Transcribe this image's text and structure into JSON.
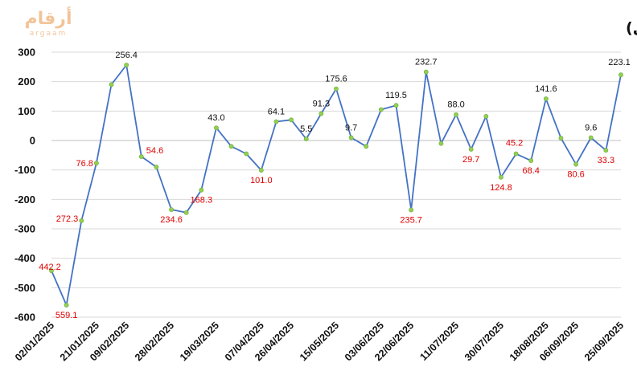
{
  "header": {
    "title": "صافي استثمارات الخليجيين في السوق السعودي منذ بداية العام الجاري (مليون ريال)",
    "logo_text": "أرقام",
    "logo_sub": "argaam"
  },
  "colors": {
    "line": "#4472C4",
    "marker": "#92D050",
    "positive_label": "#111111",
    "negative_label": "#E00000",
    "grid": "#D9D9D9"
  },
  "chart_data": {
    "type": "line",
    "title": "صافي استثمارات الخليجيين في السوق السعودي منذ بداية العام الجاري (مليون ريال)",
    "xlabel": "",
    "ylabel": "",
    "ylim": [
      -600,
      300
    ],
    "yticks": [
      -600,
      -500,
      -400,
      -300,
      -200,
      -100,
      0,
      100,
      200,
      300
    ],
    "xtick_labels": [
      "02/01/2025",
      "21/01/2025",
      "09/02/2025",
      "28/02/2025",
      "19/03/2025",
      "07/04/2025",
      "26/04/2025",
      "15/05/2025",
      "03/06/2025",
      "22/06/2025",
      "11/07/2025",
      "30/07/2025",
      "18/08/2025",
      "06/09/2025",
      "25/09/2025"
    ],
    "grid": "horizontal",
    "values": [
      -442.2,
      -559.1,
      -272.3,
      -76.8,
      190.0,
      256.4,
      -54.6,
      -90.0,
      -234.6,
      -245.0,
      -168.3,
      43.0,
      -20.0,
      -45.0,
      -101.0,
      64.1,
      70.0,
      5.5,
      91.3,
      175.6,
      9.7,
      -20.0,
      105.0,
      119.5,
      -235.7,
      232.7,
      -10.0,
      88.0,
      -29.7,
      82.0,
      -124.8,
      -45.2,
      -68.4,
      141.6,
      8.0,
      -80.6,
      9.6,
      -33.3,
      223.1
    ],
    "point_labels": [
      {
        "index": 0,
        "text": "442.2",
        "negative": true
      },
      {
        "index": 1,
        "text": "559.1",
        "negative": true
      },
      {
        "index": 2,
        "text": "272.3",
        "negative": true
      },
      {
        "index": 3,
        "text": "76.8",
        "negative": true
      },
      {
        "index": 5,
        "text": "256.4",
        "negative": false
      },
      {
        "index": 6,
        "text": "54.6",
        "negative": true
      },
      {
        "index": 8,
        "text": "234.6",
        "negative": true
      },
      {
        "index": 10,
        "text": "168.3",
        "negative": true
      },
      {
        "index": 11,
        "text": "43.0",
        "negative": false
      },
      {
        "index": 14,
        "text": "101.0",
        "negative": true
      },
      {
        "index": 15,
        "text": "64.1",
        "negative": false
      },
      {
        "index": 17,
        "text": "5.5",
        "negative": false
      },
      {
        "index": 18,
        "text": "91.3",
        "negative": false
      },
      {
        "index": 19,
        "text": "175.6",
        "negative": false
      },
      {
        "index": 20,
        "text": "9.7",
        "negative": false
      },
      {
        "index": 23,
        "text": "119.5",
        "negative": false
      },
      {
        "index": 24,
        "text": "235.7",
        "negative": true
      },
      {
        "index": 25,
        "text": "232.7",
        "negative": false
      },
      {
        "index": 27,
        "text": "88.0",
        "negative": false
      },
      {
        "index": 28,
        "text": "29.7",
        "negative": true
      },
      {
        "index": 30,
        "text": "124.8",
        "negative": true
      },
      {
        "index": 31,
        "text": "45.2",
        "negative": true
      },
      {
        "index": 32,
        "text": "68.4",
        "negative": true
      },
      {
        "index": 33,
        "text": "141.6",
        "negative": false
      },
      {
        "index": 35,
        "text": "80.6",
        "negative": true
      },
      {
        "index": 36,
        "text": "9.6",
        "negative": false
      },
      {
        "index": 37,
        "text": "33.3",
        "negative": true
      },
      {
        "index": 38,
        "text": "223.1",
        "negative": false
      }
    ]
  }
}
